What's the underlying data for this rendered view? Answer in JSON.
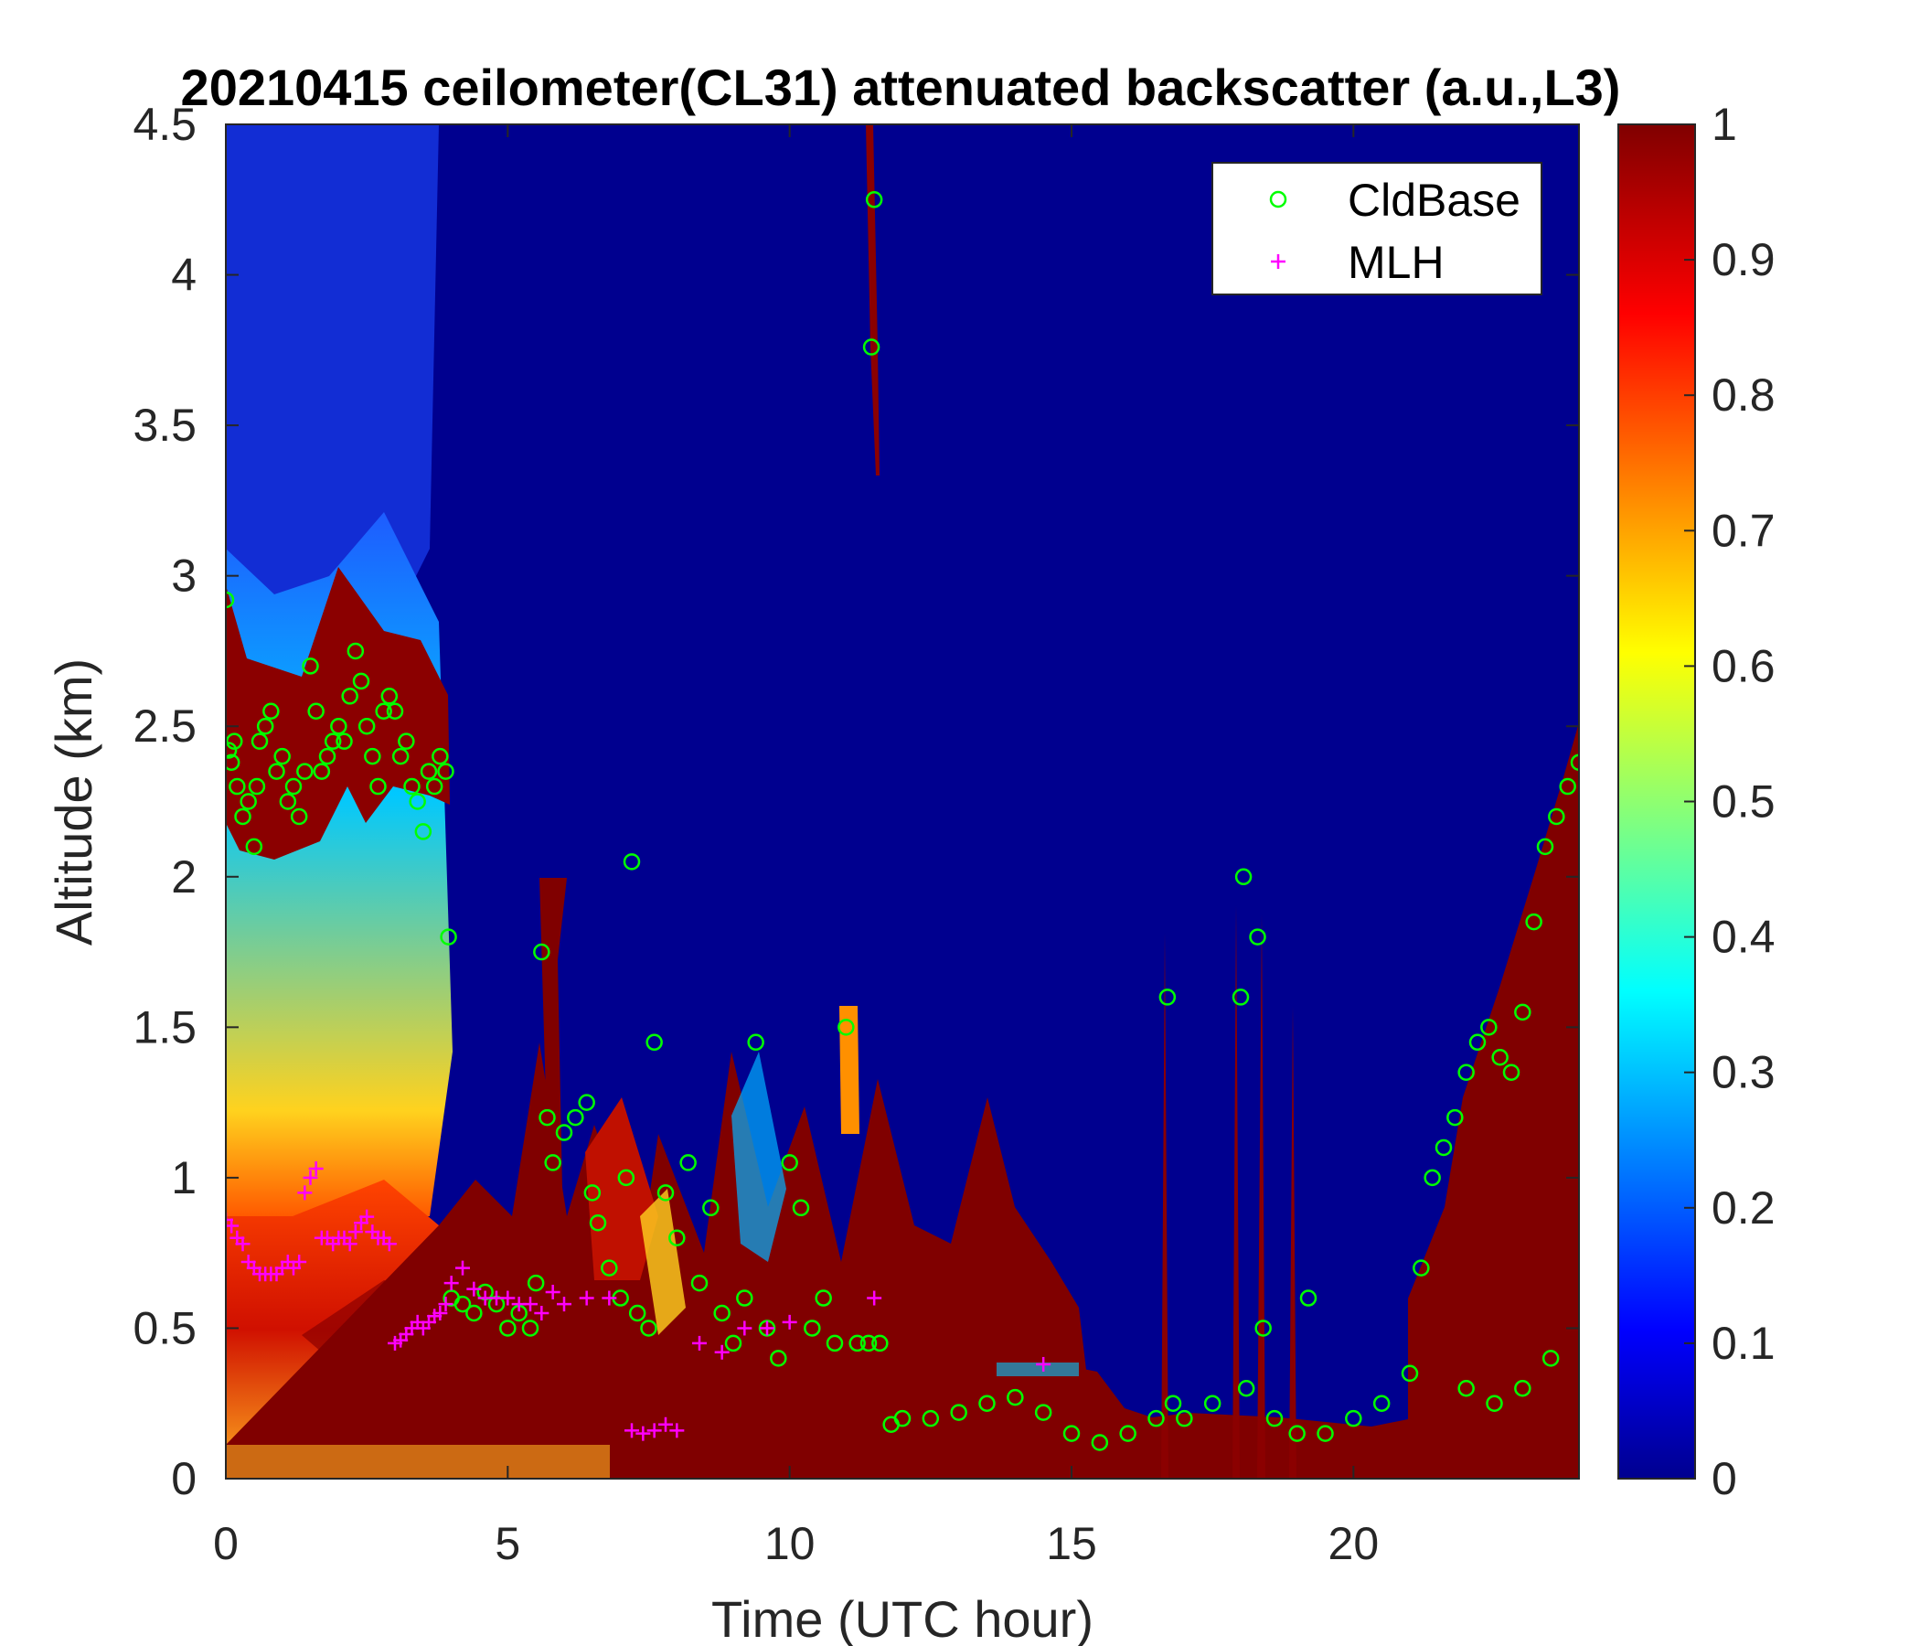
{
  "chart_data": {
    "type": "heatmap",
    "title": "20210415 ceilometer(CL31) attenuated backscatter (a.u.,L3)",
    "xlabel": "Time (UTC hour)",
    "ylabel": "Altitude (km)",
    "xlim": [
      0,
      24
    ],
    "ylim": [
      0,
      4.5
    ],
    "xticks": [
      "0",
      "5",
      "10",
      "15",
      "20"
    ],
    "yticks": [
      "0",
      "0.5",
      "1",
      "1.5",
      "2",
      "2.5",
      "3",
      "3.5",
      "4",
      "4.5"
    ],
    "colorbar": {
      "label": "",
      "range": [
        0,
        1
      ],
      "ticks": [
        "0",
        "0.1",
        "0.2",
        "0.3",
        "0.4",
        "0.5",
        "0.6",
        "0.7",
        "0.8",
        "0.9",
        "1"
      ],
      "colormap": "jet"
    },
    "legend": {
      "position": "top-right",
      "entries": [
        {
          "name": "CldBase",
          "marker": "circle",
          "color": "#00ff00"
        },
        {
          "name": "MLH",
          "marker": "plus",
          "color": "#ff00ff"
        }
      ]
    },
    "series": [
      {
        "name": "CldBase",
        "points": [
          [
            0.0,
            2.92
          ],
          [
            0.05,
            2.42
          ],
          [
            0.1,
            2.38
          ],
          [
            0.15,
            2.45
          ],
          [
            0.2,
            2.3
          ],
          [
            0.3,
            2.2
          ],
          [
            0.4,
            2.25
          ],
          [
            0.5,
            2.1
          ],
          [
            0.55,
            2.3
          ],
          [
            0.6,
            2.45
          ],
          [
            0.7,
            2.5
          ],
          [
            0.8,
            2.55
          ],
          [
            0.9,
            2.35
          ],
          [
            1.0,
            2.4
          ],
          [
            1.1,
            2.25
          ],
          [
            1.2,
            2.3
          ],
          [
            1.3,
            2.2
          ],
          [
            1.4,
            2.35
          ],
          [
            1.5,
            2.7
          ],
          [
            1.6,
            2.55
          ],
          [
            1.7,
            2.35
          ],
          [
            1.8,
            2.4
          ],
          [
            1.9,
            2.45
          ],
          [
            2.0,
            2.5
          ],
          [
            2.1,
            2.45
          ],
          [
            2.2,
            2.6
          ],
          [
            2.3,
            2.75
          ],
          [
            2.4,
            2.65
          ],
          [
            2.5,
            2.5
          ],
          [
            2.6,
            2.4
          ],
          [
            2.7,
            2.3
          ],
          [
            2.8,
            2.55
          ],
          [
            2.9,
            2.6
          ],
          [
            3.0,
            2.55
          ],
          [
            3.1,
            2.4
          ],
          [
            3.2,
            2.45
          ],
          [
            3.3,
            2.3
          ],
          [
            3.4,
            2.25
          ],
          [
            3.5,
            2.15
          ],
          [
            3.6,
            2.35
          ],
          [
            3.7,
            2.3
          ],
          [
            3.8,
            2.4
          ],
          [
            3.9,
            2.35
          ],
          [
            3.95,
            1.8
          ],
          [
            4.0,
            0.6
          ],
          [
            4.2,
            0.58
          ],
          [
            4.4,
            0.55
          ],
          [
            4.6,
            0.62
          ],
          [
            4.8,
            0.58
          ],
          [
            5.0,
            0.5
          ],
          [
            5.2,
            0.55
          ],
          [
            5.4,
            0.5
          ],
          [
            5.5,
            0.65
          ],
          [
            5.6,
            1.75
          ],
          [
            5.7,
            1.2
          ],
          [
            5.8,
            1.05
          ],
          [
            6.0,
            1.15
          ],
          [
            6.2,
            1.2
          ],
          [
            6.4,
            1.25
          ],
          [
            6.5,
            0.95
          ],
          [
            6.6,
            0.85
          ],
          [
            6.8,
            0.7
          ],
          [
            7.0,
            0.6
          ],
          [
            7.1,
            1.0
          ],
          [
            7.2,
            2.05
          ],
          [
            7.3,
            0.55
          ],
          [
            7.5,
            0.5
          ],
          [
            7.6,
            1.45
          ],
          [
            7.8,
            0.95
          ],
          [
            8.0,
            0.8
          ],
          [
            8.2,
            1.05
          ],
          [
            8.4,
            0.65
          ],
          [
            8.6,
            0.9
          ],
          [
            8.8,
            0.55
          ],
          [
            9.0,
            0.45
          ],
          [
            9.2,
            0.6
          ],
          [
            9.4,
            1.45
          ],
          [
            9.6,
            0.5
          ],
          [
            9.8,
            0.4
          ],
          [
            10.0,
            1.05
          ],
          [
            10.2,
            0.9
          ],
          [
            10.4,
            0.5
          ],
          [
            10.6,
            0.6
          ],
          [
            10.8,
            0.45
          ],
          [
            11.0,
            1.5
          ],
          [
            11.2,
            0.45
          ],
          [
            11.4,
            0.45
          ],
          [
            11.45,
            3.76
          ],
          [
            11.5,
            4.25
          ],
          [
            11.6,
            0.45
          ],
          [
            11.8,
            0.18
          ],
          [
            12.0,
            0.2
          ],
          [
            12.5,
            0.2
          ],
          [
            13.0,
            0.22
          ],
          [
            13.5,
            0.25
          ],
          [
            14.0,
            0.27
          ],
          [
            14.5,
            0.22
          ],
          [
            15.0,
            0.15
          ],
          [
            15.5,
            0.12
          ],
          [
            16.0,
            0.15
          ],
          [
            16.5,
            0.2
          ],
          [
            16.7,
            1.6
          ],
          [
            16.8,
            0.25
          ],
          [
            17.0,
            0.2
          ],
          [
            17.5,
            0.25
          ],
          [
            18.0,
            1.6
          ],
          [
            18.05,
            2.0
          ],
          [
            18.1,
            0.3
          ],
          [
            18.3,
            1.8
          ],
          [
            18.4,
            0.5
          ],
          [
            18.6,
            0.2
          ],
          [
            19.0,
            0.15
          ],
          [
            19.2,
            0.6
          ],
          [
            19.5,
            0.15
          ],
          [
            20.0,
            0.2
          ],
          [
            20.5,
            0.25
          ],
          [
            21.0,
            0.35
          ],
          [
            21.2,
            0.7
          ],
          [
            21.4,
            1.0
          ],
          [
            21.6,
            1.1
          ],
          [
            21.8,
            1.2
          ],
          [
            22.0,
            1.35
          ],
          [
            22.2,
            1.45
          ],
          [
            22.4,
            1.5
          ],
          [
            22.6,
            1.4
          ],
          [
            22.8,
            1.35
          ],
          [
            23.0,
            1.55
          ],
          [
            23.2,
            1.85
          ],
          [
            23.4,
            2.1
          ],
          [
            23.6,
            2.2
          ],
          [
            23.8,
            2.3
          ],
          [
            24.0,
            2.38
          ],
          [
            22.0,
            0.3
          ],
          [
            22.5,
            0.25
          ],
          [
            23.0,
            0.3
          ],
          [
            23.5,
            0.4
          ]
        ]
      },
      {
        "name": "MLH",
        "points": [
          [
            0.0,
            0.86
          ],
          [
            0.1,
            0.84
          ],
          [
            0.2,
            0.8
          ],
          [
            0.3,
            0.78
          ],
          [
            0.4,
            0.72
          ],
          [
            0.5,
            0.7
          ],
          [
            0.6,
            0.68
          ],
          [
            0.7,
            0.68
          ],
          [
            0.8,
            0.68
          ],
          [
            0.9,
            0.68
          ],
          [
            1.0,
            0.7
          ],
          [
            1.1,
            0.72
          ],
          [
            1.2,
            0.7
          ],
          [
            1.3,
            0.72
          ],
          [
            1.4,
            0.95
          ],
          [
            1.5,
            1.0
          ],
          [
            1.6,
            1.03
          ],
          [
            1.7,
            0.8
          ],
          [
            1.8,
            0.8
          ],
          [
            1.9,
            0.78
          ],
          [
            2.0,
            0.8
          ],
          [
            2.1,
            0.8
          ],
          [
            2.2,
            0.78
          ],
          [
            2.3,
            0.82
          ],
          [
            2.4,
            0.85
          ],
          [
            2.5,
            0.87
          ],
          [
            2.6,
            0.82
          ],
          [
            2.7,
            0.8
          ],
          [
            2.8,
            0.8
          ],
          [
            2.9,
            0.78
          ],
          [
            3.0,
            0.45
          ],
          [
            3.1,
            0.46
          ],
          [
            3.2,
            0.48
          ],
          [
            3.3,
            0.5
          ],
          [
            3.4,
            0.52
          ],
          [
            3.5,
            0.5
          ],
          [
            3.6,
            0.52
          ],
          [
            3.7,
            0.54
          ],
          [
            3.8,
            0.55
          ],
          [
            3.9,
            0.58
          ],
          [
            4.0,
            0.65
          ],
          [
            4.2,
            0.7
          ],
          [
            4.4,
            0.63
          ],
          [
            4.6,
            0.6
          ],
          [
            4.8,
            0.6
          ],
          [
            5.0,
            0.6
          ],
          [
            5.2,
            0.58
          ],
          [
            5.4,
            0.58
          ],
          [
            5.6,
            0.55
          ],
          [
            5.8,
            0.62
          ],
          [
            6.0,
            0.58
          ],
          [
            6.4,
            0.6
          ],
          [
            6.8,
            0.6
          ],
          [
            7.2,
            0.16
          ],
          [
            7.4,
            0.15
          ],
          [
            7.6,
            0.16
          ],
          [
            7.8,
            0.18
          ],
          [
            8.0,
            0.16
          ],
          [
            8.4,
            0.45
          ],
          [
            8.8,
            0.42
          ],
          [
            9.2,
            0.5
          ],
          [
            9.6,
            0.5
          ],
          [
            10.0,
            0.52
          ],
          [
            11.5,
            0.6
          ],
          [
            14.5,
            0.38
          ]
        ]
      }
    ],
    "field_description": "jet-colormap backscatter field: saturated (1.0) aerosol/boundary-layer mass below ~0.6 km all day, diffuse cloud layer 2-3 km during 0-4 UTC, convective plumes 4-12 UTC, thin cloud streak near 11.5 UTC up to 4.5 km, rising cloud layer 21-24 UTC"
  }
}
